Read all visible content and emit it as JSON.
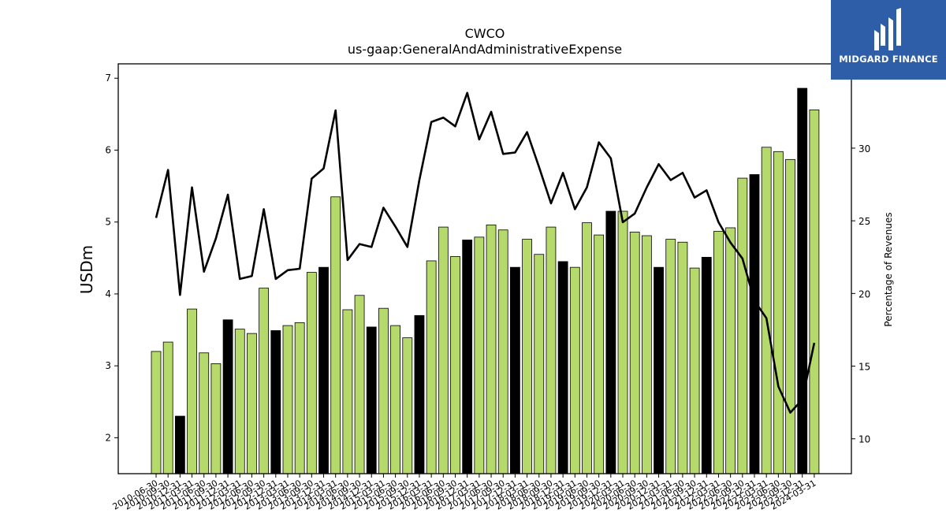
{
  "logo": {
    "name": "MIDGARD FINANCE"
  },
  "chart_data": {
    "type": "bar",
    "title": "CWCO",
    "subtitle": "us-gaap:GeneralAndAdministrativeExpense",
    "ylabel": "USDm",
    "y2label": "Percentage of Revenues",
    "ylim": [
      1.5,
      7.2
    ],
    "y2lim": [
      7.6,
      35.8
    ],
    "yticks": [
      2,
      3,
      4,
      5,
      6,
      7
    ],
    "y2ticks": [
      10,
      15,
      20,
      25,
      30
    ],
    "grid": false,
    "colors": {
      "bar": "#b5d96b",
      "highlight_bar": "#000000",
      "line": "#000000"
    },
    "x": [
      "2010-06-30",
      "2010-09-30",
      "2010-12-31",
      "2011-03-31",
      "2011-06-30",
      "2011-09-30",
      "2011-12-31",
      "2012-03-31",
      "2012-06-30",
      "2012-09-30",
      "2012-12-31",
      "2013-03-31",
      "2013-06-30",
      "2013-09-30",
      "2013-12-31",
      "2014-03-31",
      "2014-06-30",
      "2014-09-30",
      "2014-12-31",
      "2015-03-31",
      "2015-06-30",
      "2015-09-30",
      "2015-12-31",
      "2016-03-31",
      "2016-06-30",
      "2016-09-30",
      "2016-12-31",
      "2017-03-31",
      "2017-06-30",
      "2017-09-30",
      "2017-12-31",
      "2018-03-31",
      "2018-06-30",
      "2018-09-30",
      "2018-12-31",
      "2019-03-31",
      "2019-06-30",
      "2019-09-30",
      "2019-12-31",
      "2020-03-31",
      "2020-06-30",
      "2020-09-30",
      "2020-12-31",
      "2021-03-31",
      "2021-06-30",
      "2021-09-30",
      "2021-12-31",
      "2022-03-31",
      "2022-06-30",
      "2022-09-30",
      "2022-12-31",
      "2023-03-31",
      "2023-06-30",
      "2023-09-30",
      "2023-12-31",
      "2024-03-31"
    ],
    "xtick_labels": [
      "2010-06-30",
      "2010-09-30",
      "2010-12-31",
      "2011-03-31",
      "2011-06-30",
      "2011-09-30",
      "2011-12-31",
      "2012-03-31",
      "2012-06-30",
      "2012-09-30",
      "2012-12-31",
      "2013-03-31",
      "2013-06-30",
      "2013-09-30",
      "2013-12-31",
      "2014-03-31",
      "2014-06-30",
      "2014-09-30",
      "2014-12-31",
      "2015-03-31",
      "2015-06-30",
      "2015-09-30",
      "2015-12-31",
      "2016-03-31",
      "2016-06-30",
      "2016-09-30",
      "2016-12-31",
      "2017-03-31",
      "2017-06-30",
      "2017-09-30",
      "2017-12-31",
      "2018-03-31",
      "2018-06-30",
      "2018-09-30",
      "2018-12-31",
      "2019-03-31",
      "2019-06-30",
      "2019-09-30",
      "2019-12-31",
      "2020-03-31",
      "2020-06-30",
      "2020-09-30",
      "2020-12-31",
      "2021-03-31",
      "2021-06-30",
      "2021-09-30",
      "2021-12-31",
      "2022-03-31",
      "2022-06-30",
      "2022-09-30",
      "2022-12-31",
      "2023-03-31",
      "2023-06-30",
      "2023-09-30",
      "2023-12-31",
      "2024-03-31"
    ],
    "values": [
      3.2,
      3.33,
      2.3,
      3.79,
      3.18,
      3.03,
      3.64,
      3.51,
      3.45,
      4.08,
      3.49,
      3.56,
      3.6,
      4.3,
      4.37,
      5.35,
      3.78,
      3.98,
      3.54,
      3.8,
      3.56,
      3.39,
      3.7,
      4.46,
      4.93,
      4.52,
      4.75,
      4.79,
      4.96,
      4.89,
      4.37,
      4.76,
      4.55,
      4.93,
      4.45,
      4.37,
      4.99,
      4.82,
      5.15,
      5.15,
      4.86,
      4.81,
      4.37,
      4.76,
      4.72,
      4.36,
      4.51,
      4.87,
      4.92,
      5.61,
      5.66,
      6.04,
      5.98,
      5.87,
      6.86,
      6.56
    ],
    "highlight": [
      false,
      false,
      true,
      false,
      false,
      false,
      true,
      false,
      false,
      false,
      true,
      false,
      false,
      false,
      true,
      false,
      false,
      false,
      true,
      false,
      false,
      false,
      true,
      false,
      false,
      false,
      true,
      false,
      false,
      false,
      true,
      false,
      false,
      false,
      true,
      false,
      false,
      false,
      true,
      false,
      false,
      false,
      true,
      false,
      false,
      false,
      true,
      false,
      false,
      false,
      true,
      false,
      false,
      false,
      true,
      false
    ],
    "pct_of_revenues": [
      25.2,
      28.5,
      19.9,
      27.3,
      21.5,
      23.8,
      26.8,
      21.0,
      21.2,
      25.8,
      21.0,
      21.6,
      21.7,
      27.9,
      28.6,
      32.6,
      22.3,
      23.4,
      23.2,
      25.9,
      24.6,
      23.2,
      27.8,
      31.8,
      32.1,
      31.5,
      33.8,
      30.6,
      32.5,
      29.6,
      29.7,
      31.1,
      28.7,
      26.2,
      28.3,
      25.8,
      27.3,
      30.4,
      29.3,
      24.9,
      25.5,
      27.3,
      28.9,
      27.8,
      28.3,
      26.6,
      27.1,
      24.9,
      23.5,
      22.4,
      19.5,
      18.3,
      13.6,
      11.8,
      12.7,
      16.6
    ]
  }
}
